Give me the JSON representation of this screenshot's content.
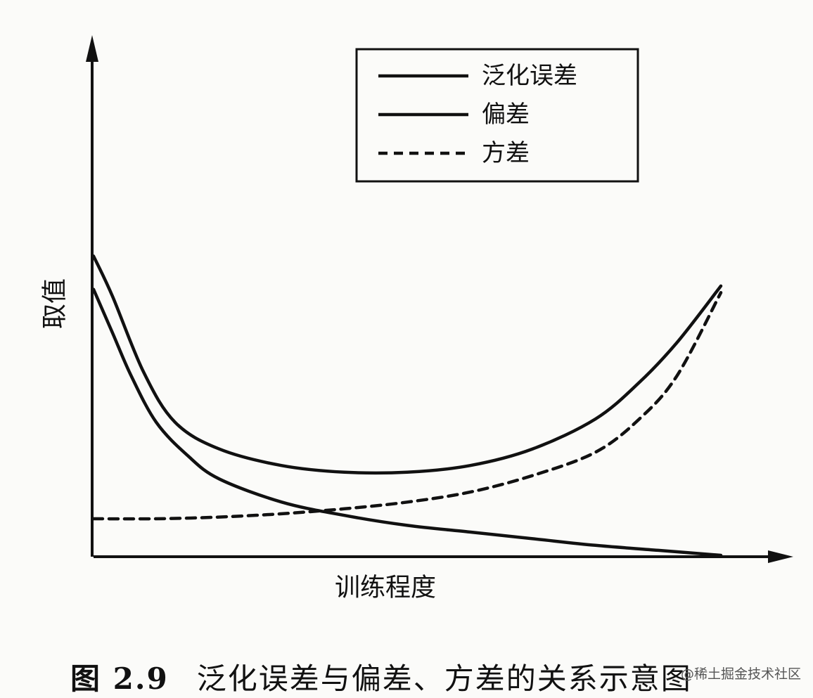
{
  "chart_data": {
    "type": "line",
    "title": "",
    "xlabel": "训练程度",
    "ylabel": "取值",
    "x_ticks": "none",
    "y_ticks": "none",
    "grid": false,
    "legend_position": "top-right",
    "xlim": [
      0,
      1
    ],
    "ylim": [
      0,
      1
    ],
    "series": [
      {
        "name": "泛化误差",
        "style": "solid",
        "points": [
          [
            0,
            0.9
          ],
          [
            0.03,
            0.78
          ],
          [
            0.08,
            0.55
          ],
          [
            0.13,
            0.4
          ],
          [
            0.2,
            0.32
          ],
          [
            0.3,
            0.27
          ],
          [
            0.4,
            0.25
          ],
          [
            0.5,
            0.25
          ],
          [
            0.6,
            0.27
          ],
          [
            0.7,
            0.32
          ],
          [
            0.8,
            0.41
          ],
          [
            0.87,
            0.52
          ],
          [
            0.93,
            0.64
          ],
          [
            1.0,
            0.81
          ]
        ]
      },
      {
        "name": "偏差",
        "style": "solid",
        "points": [
          [
            0,
            0.8
          ],
          [
            0.03,
            0.67
          ],
          [
            0.06,
            0.54
          ],
          [
            0.1,
            0.4
          ],
          [
            0.15,
            0.3
          ],
          [
            0.2,
            0.23
          ],
          [
            0.3,
            0.16
          ],
          [
            0.4,
            0.12
          ],
          [
            0.5,
            0.09
          ],
          [
            0.6,
            0.07
          ],
          [
            0.7,
            0.05
          ],
          [
            0.8,
            0.03
          ],
          [
            0.9,
            0.015
          ],
          [
            1.0,
            0.0
          ]
        ]
      },
      {
        "name": "方差",
        "style": "dashed",
        "points": [
          [
            0,
            0.11
          ],
          [
            0.1,
            0.11
          ],
          [
            0.2,
            0.115
          ],
          [
            0.3,
            0.125
          ],
          [
            0.4,
            0.14
          ],
          [
            0.5,
            0.16
          ],
          [
            0.6,
            0.19
          ],
          [
            0.7,
            0.24
          ],
          [
            0.8,
            0.31
          ],
          [
            0.87,
            0.41
          ],
          [
            0.93,
            0.54
          ],
          [
            1.0,
            0.79
          ]
        ]
      }
    ]
  },
  "caption": {
    "number": "图 2.9",
    "text": "泛化误差与偏差、方差的关系示意图"
  },
  "watermark": "@稀土掘金技术社区",
  "colors": {
    "line": "#111111",
    "background": "#fbfbf9"
  }
}
